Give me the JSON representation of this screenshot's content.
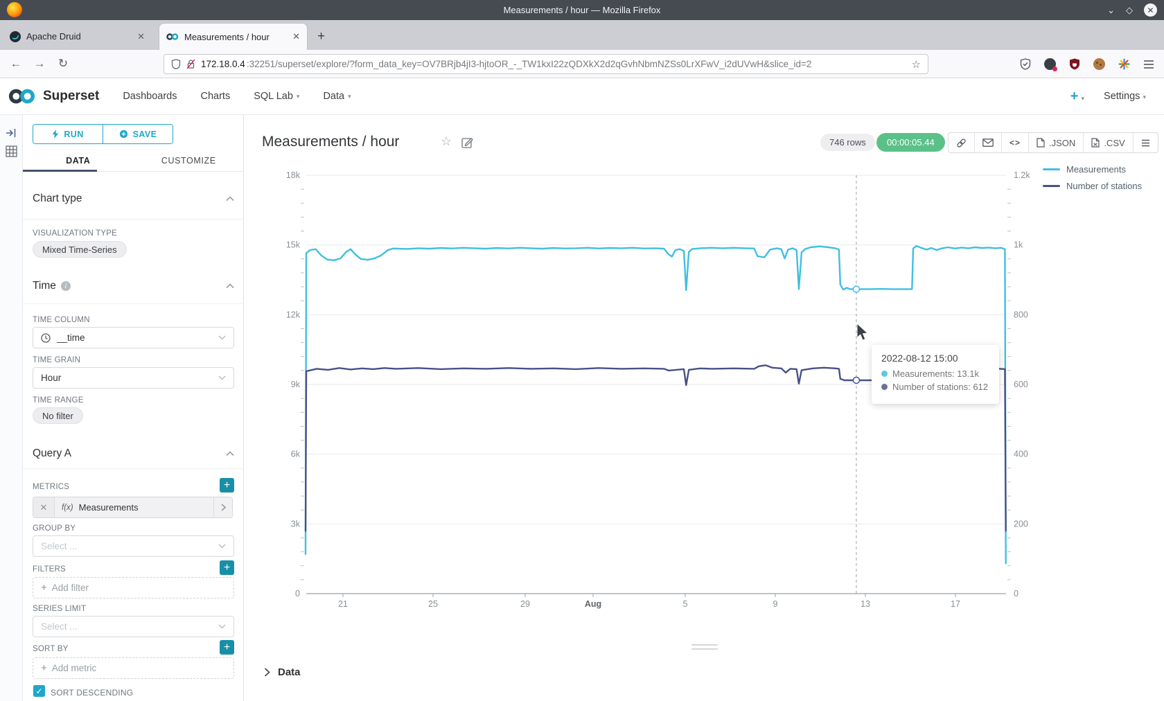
{
  "browser": {
    "window_title": "Measurements / hour — Mozilla Firefox",
    "tab1": "Apache Druid",
    "tab2": "Measurements / hour",
    "url_host": "172.18.0.4",
    "url_rest": ":32251/superset/explore/?form_data_key=OV7BRjb4jI3-hjtoOR_-_TW1kxI22zQDXkX2d2qGvhNbmNZSs0LrXFwV_i2dUVwH&slice_id=2"
  },
  "nav": {
    "brand": "Superset",
    "dashboards": "Dashboards",
    "charts": "Charts",
    "sql_lab": "SQL Lab",
    "data": "Data",
    "settings": "Settings"
  },
  "panel": {
    "run": "RUN",
    "save": "SAVE",
    "tab_data": "DATA",
    "tab_customize": "CUSTOMIZE",
    "chart_type_header": "Chart type",
    "viz_type_label": "VISUALIZATION TYPE",
    "viz_type_value": "Mixed Time-Series",
    "time_header": "Time",
    "time_column_label": "TIME COLUMN",
    "time_column_value": "__time",
    "time_grain_label": "TIME GRAIN",
    "time_grain_value": "Hour",
    "time_range_label": "TIME RANGE",
    "time_range_value": "No filter",
    "query_header": "Query A",
    "metrics_label": "METRICS",
    "metric_fx": "f(x)",
    "metric_name": "Measurements",
    "group_by_label": "GROUP BY",
    "group_by_placeholder": "Select ...",
    "filters_label": "FILTERS",
    "add_filter": "Add filter",
    "series_limit_label": "SERIES LIMIT",
    "series_limit_placeholder": "Select ...",
    "sort_by_label": "SORT BY",
    "add_metric": "Add metric",
    "sort_descending": "SORT DESCENDING"
  },
  "header": {
    "title": "Measurements / hour",
    "rows_badge": "746 rows",
    "timer": "00:00:05.44",
    "json": ".JSON",
    "csv": ".CSV"
  },
  "chart_data": {
    "type": "line",
    "title": "Measurements / hour",
    "x_axis": {
      "ticks": [
        {
          "label": "21"
        },
        {
          "label": "25"
        },
        {
          "label": "29"
        },
        {
          "label": "Aug",
          "bold": true
        },
        {
          "label": "5"
        },
        {
          "label": "9"
        },
        {
          "label": "13"
        },
        {
          "label": "17"
        }
      ],
      "range": "2022-07-19 to 2022-08-19, hourly (746 rows)"
    },
    "y_axis_left": {
      "ticks": [
        "18k",
        "15k",
        "12k",
        "9k",
        "6k",
        "3k",
        "0"
      ],
      "max": 18000
    },
    "y_axis_right": {
      "ticks": [
        "1.2k",
        "1k",
        "800",
        "600",
        "400",
        "200",
        "0"
      ],
      "max": 1200
    },
    "legend": [
      {
        "label": "Measurements",
        "color": "#3fbfe0"
      },
      {
        "label": "Number of stations",
        "color": "#475088"
      }
    ],
    "series": [
      {
        "name": "Measurements",
        "axis": "left",
        "color": "#3fbfe0",
        "points": [
          [
            0.0,
            1700
          ],
          [
            0.03,
            14650
          ],
          [
            0.2,
            14780
          ],
          [
            0.45,
            14820
          ],
          [
            0.7,
            14550
          ],
          [
            0.95,
            14380
          ],
          [
            1.25,
            14340
          ],
          [
            1.55,
            14420
          ],
          [
            1.8,
            14700
          ],
          [
            2.0,
            14820
          ],
          [
            2.2,
            14600
          ],
          [
            2.45,
            14400
          ],
          [
            2.75,
            14360
          ],
          [
            3.05,
            14420
          ],
          [
            3.35,
            14550
          ],
          [
            3.65,
            14780
          ],
          [
            3.9,
            14850
          ],
          [
            4.5,
            14830
          ],
          [
            5.0,
            14860
          ],
          [
            5.5,
            14840
          ],
          [
            6.0,
            14870
          ],
          [
            6.5,
            14850
          ],
          [
            7.0,
            14880
          ],
          [
            7.5,
            14860
          ],
          [
            8.0,
            14840
          ],
          [
            8.5,
            14870
          ],
          [
            9.0,
            14850
          ],
          [
            9.5,
            14880
          ],
          [
            10.0,
            14860
          ],
          [
            10.5,
            14840
          ],
          [
            11.0,
            14870
          ],
          [
            11.5,
            14850
          ],
          [
            12.0,
            14860
          ],
          [
            12.5,
            14880
          ],
          [
            13.0,
            14850
          ],
          [
            13.5,
            14870
          ],
          [
            14.0,
            14860
          ],
          [
            14.5,
            14880
          ],
          [
            15.0,
            14850
          ],
          [
            15.5,
            14860
          ],
          [
            15.9,
            14840
          ],
          [
            16.1,
            14600
          ],
          [
            16.25,
            14500
          ],
          [
            16.4,
            14780
          ],
          [
            16.6,
            14820
          ],
          [
            16.78,
            14750
          ],
          [
            16.88,
            13050
          ],
          [
            17.0,
            14700
          ],
          [
            17.15,
            14830
          ],
          [
            17.5,
            14860
          ],
          [
            18.0,
            14880
          ],
          [
            18.5,
            14860
          ],
          [
            19.0,
            14880
          ],
          [
            19.5,
            14860
          ],
          [
            19.9,
            14850
          ],
          [
            20.05,
            14520
          ],
          [
            20.35,
            14470
          ],
          [
            20.6,
            14800
          ],
          [
            20.9,
            14860
          ],
          [
            21.1,
            14820
          ],
          [
            21.25,
            14420
          ],
          [
            21.4,
            14800
          ],
          [
            21.6,
            14860
          ],
          [
            21.78,
            14780
          ],
          [
            21.88,
            13100
          ],
          [
            22.0,
            14680
          ],
          [
            22.15,
            14820
          ],
          [
            22.4,
            14900
          ],
          [
            22.8,
            14940
          ],
          [
            23.2,
            14900
          ],
          [
            23.5,
            14860
          ],
          [
            23.66,
            14800
          ],
          [
            23.72,
            13300
          ],
          [
            23.85,
            13080
          ],
          [
            24.0,
            13160
          ],
          [
            24.15,
            13100
          ],
          [
            24.43,
            13100
          ],
          [
            25.0,
            13100
          ],
          [
            25.5,
            13110
          ],
          [
            26.0,
            13100
          ],
          [
            26.5,
            13100
          ],
          [
            26.9,
            13100
          ],
          [
            26.95,
            14850
          ],
          [
            27.1,
            14960
          ],
          [
            27.3,
            14880
          ],
          [
            27.55,
            14800
          ],
          [
            27.75,
            14870
          ],
          [
            28.0,
            14780
          ],
          [
            28.2,
            14850
          ],
          [
            28.5,
            14900
          ],
          [
            28.8,
            14850
          ],
          [
            29.1,
            14890
          ],
          [
            29.4,
            14860
          ],
          [
            29.7,
            14900
          ],
          [
            30.0,
            14870
          ],
          [
            30.3,
            14890
          ],
          [
            30.6,
            14860
          ],
          [
            30.85,
            14880
          ],
          [
            31.02,
            14820
          ],
          [
            31.06,
            1300
          ]
        ]
      },
      {
        "name": "Number of stations",
        "axis": "right",
        "color": "#475088",
        "points": [
          [
            0.0,
            180
          ],
          [
            0.03,
            638
          ],
          [
            0.5,
            645
          ],
          [
            1.0,
            642
          ],
          [
            1.5,
            647
          ],
          [
            2.0,
            643
          ],
          [
            2.5,
            646
          ],
          [
            3.0,
            644
          ],
          [
            3.5,
            647
          ],
          [
            4.0,
            645
          ],
          [
            5.0,
            647
          ],
          [
            6.0,
            644
          ],
          [
            7.0,
            646
          ],
          [
            8.0,
            645
          ],
          [
            9.0,
            647
          ],
          [
            10.0,
            645
          ],
          [
            11.0,
            646
          ],
          [
            12.0,
            644
          ],
          [
            13.0,
            647
          ],
          [
            14.0,
            645
          ],
          [
            15.0,
            646
          ],
          [
            15.9,
            645
          ],
          [
            16.1,
            640
          ],
          [
            16.78,
            644
          ],
          [
            16.88,
            598
          ],
          [
            17.0,
            642
          ],
          [
            17.5,
            646
          ],
          [
            18.0,
            645
          ],
          [
            19.0,
            646
          ],
          [
            19.9,
            645
          ],
          [
            20.1,
            652
          ],
          [
            20.4,
            655
          ],
          [
            20.7,
            648
          ],
          [
            21.1,
            646
          ],
          [
            21.3,
            634
          ],
          [
            21.5,
            645
          ],
          [
            21.78,
            644
          ],
          [
            21.88,
            602
          ],
          [
            22.0,
            641
          ],
          [
            22.5,
            646
          ],
          [
            23.0,
            648
          ],
          [
            23.5,
            646
          ],
          [
            23.66,
            645
          ],
          [
            23.72,
            616
          ],
          [
            23.9,
            612
          ],
          [
            24.43,
            612
          ],
          [
            25.5,
            612
          ],
          [
            26.9,
            612
          ],
          [
            26.95,
            644
          ],
          [
            27.5,
            647
          ],
          [
            28.5,
            645
          ],
          [
            29.5,
            647
          ],
          [
            30.5,
            646
          ],
          [
            31.02,
            644
          ],
          [
            31.06,
            180
          ]
        ]
      }
    ],
    "hover": {
      "d": 24.43,
      "values": [
        13100,
        612
      ],
      "x_label": "2022-08-12 15:00"
    },
    "tooltip": {
      "title": "2022-08-12 15:00",
      "rows": [
        {
          "text": "Measurements: 13.1k",
          "color": "#5ec7e4"
        },
        {
          "text": "Number of stations: 612",
          "color": "#6b7199"
        }
      ]
    }
  },
  "footer": {
    "data_label": "Data"
  }
}
